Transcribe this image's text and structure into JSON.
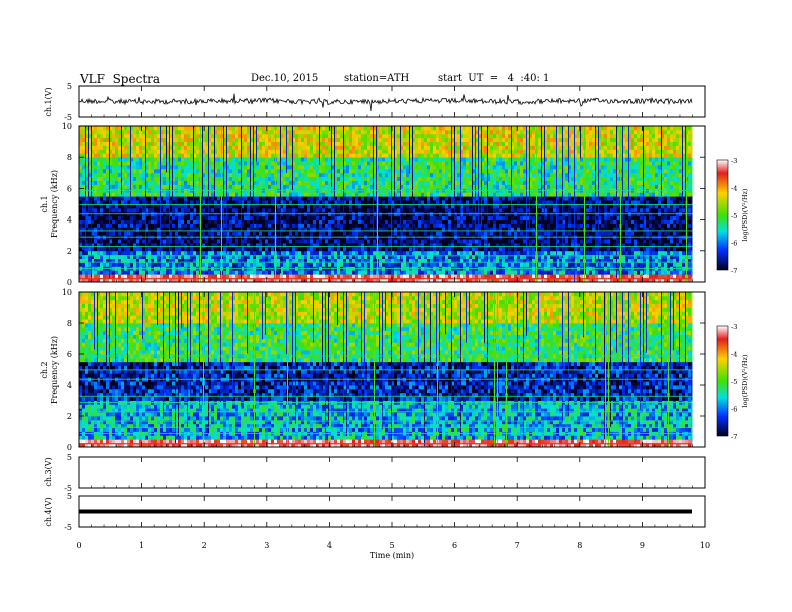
{
  "header": {
    "title": "VLF  Spectra",
    "date": "Dec.10, 2015",
    "station": "station=ATH",
    "start": "start  UT  =   4  :40: 1"
  },
  "chart_data": [
    {
      "type": "line",
      "panel": "ch1-waveform",
      "ylabel": "ch.1(V)",
      "ylim": [
        -5,
        5
      ],
      "y_ticks": [
        "5",
        "-5"
      ],
      "xlim": [
        0,
        10
      ],
      "x": [
        0,
        1,
        2,
        3,
        4,
        5,
        6,
        7,
        8,
        9,
        9.8
      ],
      "y": [
        0.2,
        -0.1,
        0.1,
        0.3,
        -0.2,
        0.1,
        0.2,
        -0.1,
        0.3,
        0.1,
        0.0
      ]
    },
    {
      "type": "heatmap",
      "panel": "ch1-spectrogram",
      "ylabel_top": "ch.1",
      "ylabel": "Frequency  (kHz)",
      "y_ticks": [
        "0",
        "2",
        "4",
        "6",
        "8",
        "10"
      ],
      "ylim": [
        0,
        10
      ],
      "xlim": [
        0,
        10
      ],
      "colorbar": {
        "label": "log(PSD)(V²/Hz)",
        "ticks": [
          "-3",
          "-4",
          "-5",
          "-6",
          "-7"
        ],
        "range": [
          -7,
          -3
        ]
      },
      "dominant_bands": [
        {
          "freq_range_kHz": [
            0,
            0.3
          ],
          "log_psd": -3.5
        },
        {
          "freq_range_kHz": [
            0.3,
            2.0
          ],
          "log_psd": -6.2
        },
        {
          "freq_range_kHz": [
            2.0,
            5.5
          ],
          "log_psd": -6.8
        },
        {
          "freq_range_kHz": [
            5.5,
            8.0
          ],
          "log_psd": -5.6
        },
        {
          "freq_range_kHz": [
            8.0,
            10.0
          ],
          "log_psd": -4.8
        }
      ]
    },
    {
      "type": "heatmap",
      "panel": "ch2-spectrogram",
      "ylabel_top": "ch.2",
      "ylabel": "Frequency  (kHz)",
      "y_ticks": [
        "0",
        "2",
        "4",
        "6",
        "8",
        "10"
      ],
      "ylim": [
        0,
        10
      ],
      "xlim": [
        0,
        10
      ],
      "colorbar": {
        "label": "log(PSD)(V²/Hz)",
        "ticks": [
          "-3",
          "-4",
          "-5",
          "-6",
          "-7"
        ],
        "range": [
          -7,
          -3
        ]
      },
      "dominant_bands": [
        {
          "freq_range_kHz": [
            0,
            0.3
          ],
          "log_psd": -3.5
        },
        {
          "freq_range_kHz": [
            0.3,
            3.0
          ],
          "log_psd": -6.0
        },
        {
          "freq_range_kHz": [
            3.0,
            5.5
          ],
          "log_psd": -6.6
        },
        {
          "freq_range_kHz": [
            5.5,
            8.0
          ],
          "log_psd": -5.5
        },
        {
          "freq_range_kHz": [
            8.0,
            10.0
          ],
          "log_psd": -4.9
        }
      ]
    },
    {
      "type": "line",
      "panel": "ch3-waveform",
      "ylabel": "ch.3(V)",
      "ylim": [
        -5,
        5
      ],
      "y_ticks": [
        "5",
        "-5"
      ],
      "xlim": [
        0,
        10
      ],
      "x": [
        0,
        9.8
      ],
      "y": [
        5,
        5
      ]
    },
    {
      "type": "line",
      "panel": "ch4-waveform",
      "ylabel": "ch.4(V)",
      "ylim": [
        -5,
        5
      ],
      "y_ticks": [
        "5",
        "-5"
      ],
      "xlim": [
        0,
        10
      ],
      "x": [
        0,
        9.8
      ],
      "y": [
        0,
        0
      ]
    }
  ],
  "x_axis": {
    "label": "Time  (min)",
    "ticks": [
      "0",
      "1",
      "2",
      "3",
      "4",
      "5",
      "6",
      "7",
      "8",
      "9",
      "10"
    ]
  }
}
